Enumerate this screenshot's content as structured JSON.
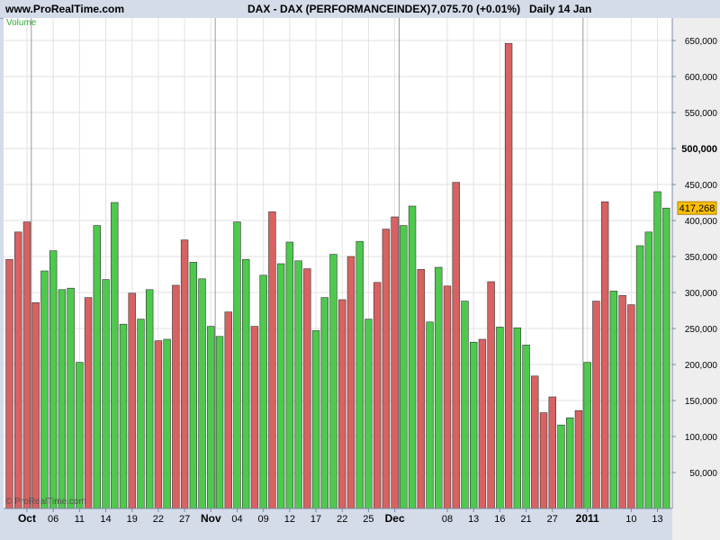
{
  "header": {
    "site": "www.ProRealTime.com",
    "instrument": "DAX - DAX (PERFORMANCEINDEX)",
    "price": "7,075.70 (+0.01%)",
    "period": "Daily  14 Jan"
  },
  "chart_data": {
    "type": "bar",
    "panel_label": "Volume",
    "copyright": "© ProRealTime.com",
    "current_value_label": "417,268",
    "current_value": 417268,
    "ylim": [
      0,
      700000
    ],
    "y_ticks": [
      {
        "value": 50000,
        "label": "50,000",
        "bold": false
      },
      {
        "value": 100000,
        "label": "100,000",
        "bold": false
      },
      {
        "value": 150000,
        "label": "150,000",
        "bold": false
      },
      {
        "value": 200000,
        "label": "200,000",
        "bold": false
      },
      {
        "value": 250000,
        "label": "250,000",
        "bold": false
      },
      {
        "value": 300000,
        "label": "300,000",
        "bold": false
      },
      {
        "value": 350000,
        "label": "350,000",
        "bold": false
      },
      {
        "value": 400000,
        "label": "400,000",
        "bold": false
      },
      {
        "value": 450000,
        "label": "450,000",
        "bold": false
      },
      {
        "value": 500000,
        "label": "500,000",
        "bold": true
      },
      {
        "value": 550000,
        "label": "550,000",
        "bold": false
      },
      {
        "value": 600000,
        "label": "600,000",
        "bold": false
      },
      {
        "value": 650000,
        "label": "650,000",
        "bold": false
      }
    ],
    "x_ticks": [
      {
        "index": 2,
        "label": "Oct",
        "bold": true
      },
      {
        "index": 5,
        "label": "06",
        "bold": false
      },
      {
        "index": 8,
        "label": "11",
        "bold": false
      },
      {
        "index": 11,
        "label": "14",
        "bold": false
      },
      {
        "index": 14,
        "label": "19",
        "bold": false
      },
      {
        "index": 17,
        "label": "22",
        "bold": false
      },
      {
        "index": 20,
        "label": "27",
        "bold": false
      },
      {
        "index": 23,
        "label": "Nov",
        "bold": true
      },
      {
        "index": 26,
        "label": "04",
        "bold": false
      },
      {
        "index": 29,
        "label": "09",
        "bold": false
      },
      {
        "index": 32,
        "label": "12",
        "bold": false
      },
      {
        "index": 35,
        "label": "17",
        "bold": false
      },
      {
        "index": 38,
        "label": "22",
        "bold": false
      },
      {
        "index": 41,
        "label": "25",
        "bold": false
      },
      {
        "index": 44,
        "label": "Dec",
        "bold": true
      },
      {
        "index": 50,
        "label": "08",
        "bold": false
      },
      {
        "index": 53,
        "label": "13",
        "bold": false
      },
      {
        "index": 56,
        "label": "16",
        "bold": false
      },
      {
        "index": 59,
        "label": "21",
        "bold": false
      },
      {
        "index": 62,
        "label": "27",
        "bold": false
      },
      {
        "index": 66,
        "label": "2011",
        "bold": true
      },
      {
        "index": 71,
        "label": "10",
        "bold": false
      },
      {
        "index": 74,
        "label": "13",
        "bold": false
      }
    ],
    "month_separators": [
      2.5,
      23.5,
      44.5,
      65.5
    ],
    "colors": {
      "up": "#4ec94e",
      "down": "#d86262",
      "background": "#ffffff",
      "grid": "#e2e2e2",
      "current_value_bg": "#ffc000"
    },
    "bars": [
      {
        "value": 346000,
        "dir": "down"
      },
      {
        "value": 384000,
        "dir": "down"
      },
      {
        "value": 398000,
        "dir": "down"
      },
      {
        "value": 286000,
        "dir": "down"
      },
      {
        "value": 330000,
        "dir": "up"
      },
      {
        "value": 358000,
        "dir": "up"
      },
      {
        "value": 304000,
        "dir": "up"
      },
      {
        "value": 306000,
        "dir": "up"
      },
      {
        "value": 203000,
        "dir": "up"
      },
      {
        "value": 293000,
        "dir": "down"
      },
      {
        "value": 393000,
        "dir": "up"
      },
      {
        "value": 318000,
        "dir": "up"
      },
      {
        "value": 425000,
        "dir": "up"
      },
      {
        "value": 256000,
        "dir": "up"
      },
      {
        "value": 299000,
        "dir": "down"
      },
      {
        "value": 263000,
        "dir": "up"
      },
      {
        "value": 304000,
        "dir": "up"
      },
      {
        "value": 233000,
        "dir": "down"
      },
      {
        "value": 235000,
        "dir": "up"
      },
      {
        "value": 310000,
        "dir": "down"
      },
      {
        "value": 373000,
        "dir": "down"
      },
      {
        "value": 342000,
        "dir": "up"
      },
      {
        "value": 319000,
        "dir": "up"
      },
      {
        "value": 253000,
        "dir": "up"
      },
      {
        "value": 239000,
        "dir": "up"
      },
      {
        "value": 273000,
        "dir": "down"
      },
      {
        "value": 398000,
        "dir": "up"
      },
      {
        "value": 346000,
        "dir": "up"
      },
      {
        "value": 253000,
        "dir": "down"
      },
      {
        "value": 324000,
        "dir": "up"
      },
      {
        "value": 412000,
        "dir": "down"
      },
      {
        "value": 340000,
        "dir": "up"
      },
      {
        "value": 370000,
        "dir": "up"
      },
      {
        "value": 344000,
        "dir": "up"
      },
      {
        "value": 333000,
        "dir": "down"
      },
      {
        "value": 247000,
        "dir": "up"
      },
      {
        "value": 293000,
        "dir": "up"
      },
      {
        "value": 353000,
        "dir": "up"
      },
      {
        "value": 290000,
        "dir": "down"
      },
      {
        "value": 350000,
        "dir": "down"
      },
      {
        "value": 371000,
        "dir": "up"
      },
      {
        "value": 263000,
        "dir": "up"
      },
      {
        "value": 314000,
        "dir": "down"
      },
      {
        "value": 388000,
        "dir": "down"
      },
      {
        "value": 405000,
        "dir": "down"
      },
      {
        "value": 393000,
        "dir": "up"
      },
      {
        "value": 420000,
        "dir": "up"
      },
      {
        "value": 332000,
        "dir": "down"
      },
      {
        "value": 259000,
        "dir": "up"
      },
      {
        "value": 335000,
        "dir": "up"
      },
      {
        "value": 309000,
        "dir": "down"
      },
      {
        "value": 453000,
        "dir": "down"
      },
      {
        "value": 288000,
        "dir": "up"
      },
      {
        "value": 231000,
        "dir": "up"
      },
      {
        "value": 235000,
        "dir": "down"
      },
      {
        "value": 315000,
        "dir": "down"
      },
      {
        "value": 252000,
        "dir": "up"
      },
      {
        "value": 646000,
        "dir": "down"
      },
      {
        "value": 251000,
        "dir": "up"
      },
      {
        "value": 227000,
        "dir": "up"
      },
      {
        "value": 184000,
        "dir": "down"
      },
      {
        "value": 133000,
        "dir": "down"
      },
      {
        "value": 155000,
        "dir": "down"
      },
      {
        "value": 116000,
        "dir": "up"
      },
      {
        "value": 126000,
        "dir": "up"
      },
      {
        "value": 136000,
        "dir": "down"
      },
      {
        "value": 203000,
        "dir": "up"
      },
      {
        "value": 288000,
        "dir": "down"
      },
      {
        "value": 426000,
        "dir": "down"
      },
      {
        "value": 302000,
        "dir": "up"
      },
      {
        "value": 296000,
        "dir": "down"
      },
      {
        "value": 283000,
        "dir": "down"
      },
      {
        "value": 365000,
        "dir": "up"
      },
      {
        "value": 384000,
        "dir": "up"
      },
      {
        "value": 440000,
        "dir": "up"
      },
      {
        "value": 417268,
        "dir": "up"
      }
    ]
  }
}
